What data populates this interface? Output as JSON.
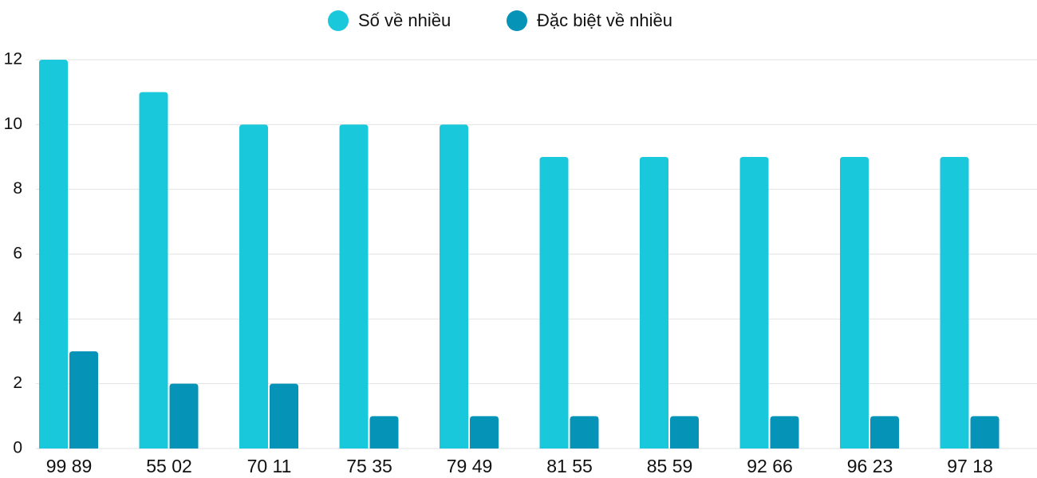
{
  "chart_data": {
    "type": "bar",
    "categories": [
      "99 89",
      "55 02",
      "70 11",
      "75 35",
      "79 49",
      "81 55",
      "85 59",
      "92 66",
      "96 23",
      "97 18"
    ],
    "series": [
      {
        "name": "Số về nhiều",
        "color": "#1ac8dc",
        "values": [
          12,
          11,
          10,
          10,
          10,
          9,
          9,
          9,
          9,
          9
        ]
      },
      {
        "name": "Đặc biệt về nhiều",
        "color": "#0594b7",
        "values": [
          3,
          2,
          2,
          1,
          1,
          1,
          1,
          1,
          1,
          1
        ]
      }
    ],
    "ylim": [
      0,
      12
    ],
    "yticks": [
      0,
      2,
      4,
      6,
      8,
      10,
      12
    ],
    "grid": true,
    "legend": "top"
  }
}
